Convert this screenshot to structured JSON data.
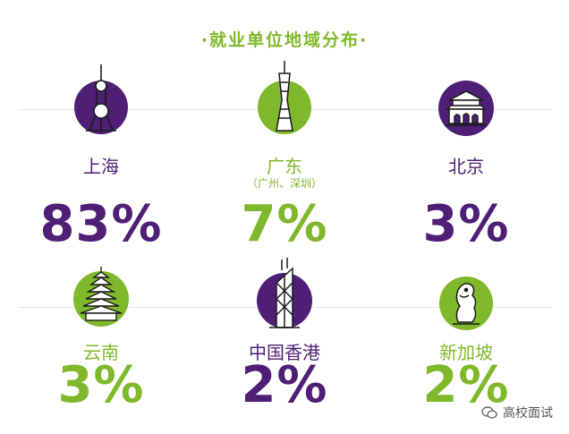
{
  "title": "·就业单位地域分布·",
  "colors": {
    "purple": "#4e1f75",
    "green": "#7fb82a",
    "icon_stroke": "#1a1a1a"
  },
  "regions": [
    {
      "name": "上海",
      "sub": "",
      "percent": "83%",
      "percent_color": "purple",
      "icon": "oriental-pearl-tower-icon",
      "badge": "purple"
    },
    {
      "name": "广东",
      "sub": "（广州、深圳）",
      "percent": "7%",
      "percent_color": "green",
      "icon": "canton-tower-icon",
      "badge": "green"
    },
    {
      "name": "北京",
      "sub": "",
      "percent": "3%",
      "percent_color": "purple",
      "icon": "tiananmen-icon",
      "badge": "purple"
    },
    {
      "name": "云南",
      "sub": "",
      "percent": "3%",
      "percent_color": "green",
      "icon": "pagoda-icon",
      "badge": "green"
    },
    {
      "name": "中国香港",
      "sub": "",
      "percent": "2%",
      "percent_color": "purple",
      "icon": "bank-of-china-tower-icon",
      "badge": "purple"
    },
    {
      "name": "新加坡",
      "sub": "",
      "percent": "2%",
      "percent_color": "green",
      "icon": "merlion-icon",
      "badge": "green"
    }
  ],
  "watermark": {
    "text": "高校面试",
    "icon": "wechat-icon"
  }
}
